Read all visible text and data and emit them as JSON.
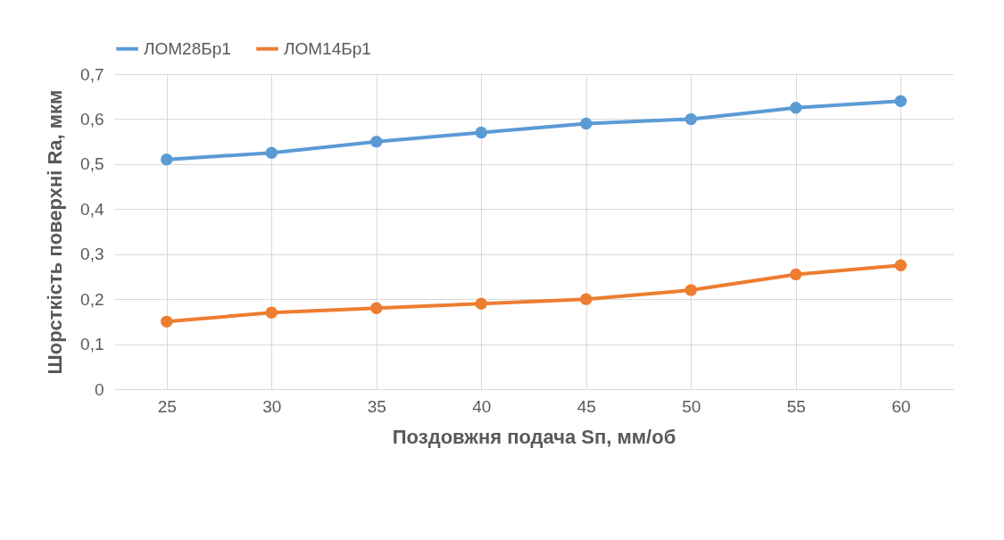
{
  "chart_data": {
    "type": "line",
    "xlabel": "Поздовжня подача Sп, мм/об",
    "ylabel": "Шорсткість поверхні Ra, мкм",
    "categories": [
      "25",
      "30",
      "35",
      "40",
      "45",
      "50",
      "55",
      "60"
    ],
    "series": [
      {
        "name": "ЛОМ28Бр1",
        "color": "#5b9bd5",
        "values": [
          0.51,
          0.525,
          0.55,
          0.57,
          0.59,
          0.6,
          0.625,
          0.64
        ]
      },
      {
        "name": "ЛОМ14Бр1",
        "color": "#ed7d31",
        "values": [
          0.15,
          0.17,
          0.18,
          0.19,
          0.2,
          0.22,
          0.255,
          0.275
        ]
      }
    ],
    "ylim": [
      0,
      0.7
    ],
    "yticks": [
      0,
      {
        "value": 0.1,
        "label": "0,1"
      },
      {
        "value": 0.2,
        "label": "0,2"
      },
      {
        "value": 0.3,
        "label": "0,3"
      },
      {
        "value": 0.4,
        "label": "0,4"
      },
      {
        "value": 0.5,
        "label": "0,5"
      },
      {
        "value": 0.6,
        "label": "0,6"
      },
      {
        "value": 0.7,
        "label": "0,7"
      }
    ],
    "grid": true,
    "legend": "top",
    "marker": "circle",
    "line_style": "solid"
  }
}
